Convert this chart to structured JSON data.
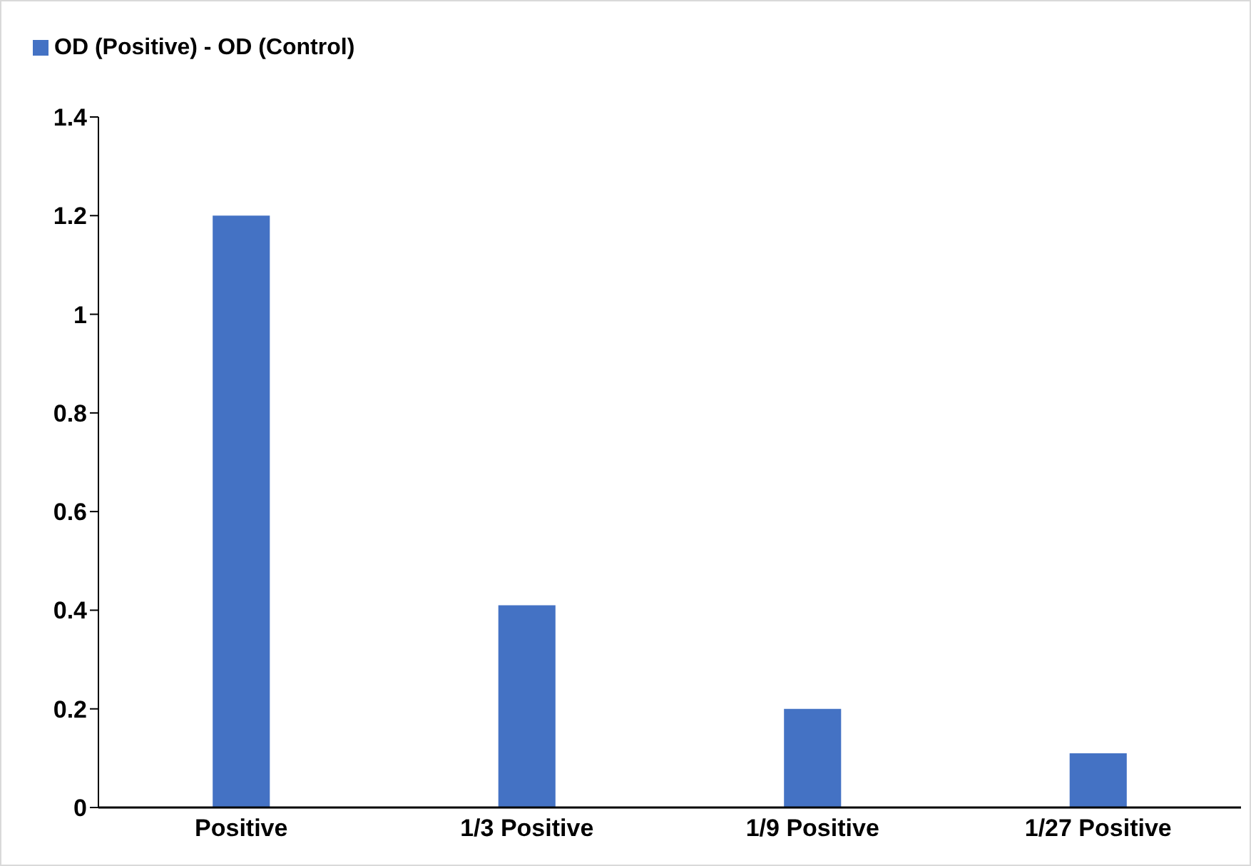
{
  "chart_data": {
    "type": "bar",
    "categories": [
      "Positive",
      "1/3 Positive",
      "1/9 Positive",
      "1/27 Positive"
    ],
    "series": [
      {
        "name": "OD (Positive) - OD (Control)",
        "color": "#4472c4",
        "values": [
          1.2,
          0.41,
          0.2,
          0.11
        ]
      }
    ],
    "ylim": [
      0,
      1.4
    ],
    "yticks": [
      0,
      {
        "value": 0.2,
        "label": "0.2"
      },
      {
        "value": 0.4,
        "label": "0.4"
      },
      {
        "value": 0.6,
        "label": "0.6"
      },
      {
        "value": 0.8,
        "label": "0.8"
      },
      1,
      {
        "value": 1.2,
        "label": "1.2"
      },
      {
        "value": 1.4,
        "label": "1.4"
      }
    ],
    "grid": false,
    "legend": "top left"
  }
}
